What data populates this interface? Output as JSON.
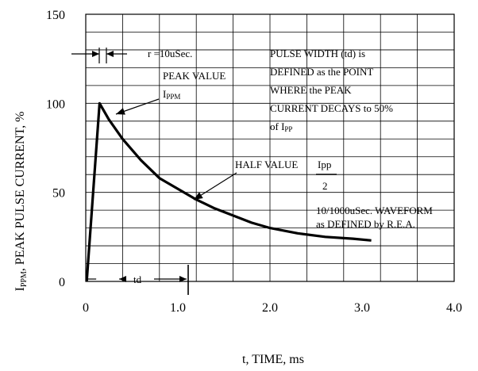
{
  "chart_data": {
    "type": "line",
    "title": "",
    "xlabel": "t, TIME, ms",
    "ylabel_main": "I",
    "ylabel_sub": "PPM",
    "ylabel_rest": ", PEAK PULSE CURRENT, %",
    "xlim": [
      0,
      4.0
    ],
    "ylim": [
      0,
      150
    ],
    "x_ticks": [
      "0",
      "1.0",
      "2.0",
      "3.0",
      "4.0"
    ],
    "x_tick_values": [
      0,
      1,
      2,
      3,
      4
    ],
    "y_ticks": [
      "0",
      "50",
      "100",
      "150"
    ],
    "y_tick_values": [
      0,
      50,
      100,
      150
    ],
    "grid": true,
    "series": [
      {
        "x": [
          0.01,
          0.15,
          0.25,
          0.4,
          0.6,
          0.8,
          1.0,
          1.2,
          1.4,
          1.6,
          1.8,
          2.0,
          2.3,
          2.6,
          2.9,
          3.1
        ],
        "y": [
          0,
          100,
          91,
          80,
          68,
          58,
          52,
          46,
          41,
          37,
          33,
          30,
          27,
          25,
          24,
          23
        ]
      }
    ],
    "annotations": {
      "rise_time": "r =10uSec.",
      "peak_value": "PEAK VALUE",
      "peak_sym_main": "I",
      "peak_sym_sub": "PPM",
      "pulse_width_lines": [
        "PULSE WIDTH (td) is",
        "DEFINED as the POINT",
        "WHERE the PEAK",
        "CURRENT DECAYS to 50%"
      ],
      "pulse_width_of": "of I",
      "pulse_width_of_sub": "PP",
      "half_value": "HALF VALUE",
      "half_frac_num": "Ipp",
      "half_frac_den": "2",
      "waveform_line1": "10/1000uSec. WAVEFORM",
      "waveform_line2": "as DEFINED by R.E.A.",
      "td_label": "td"
    },
    "colors": {
      "line": "#000000",
      "grid": "#000000",
      "background": "#ffffff"
    }
  }
}
